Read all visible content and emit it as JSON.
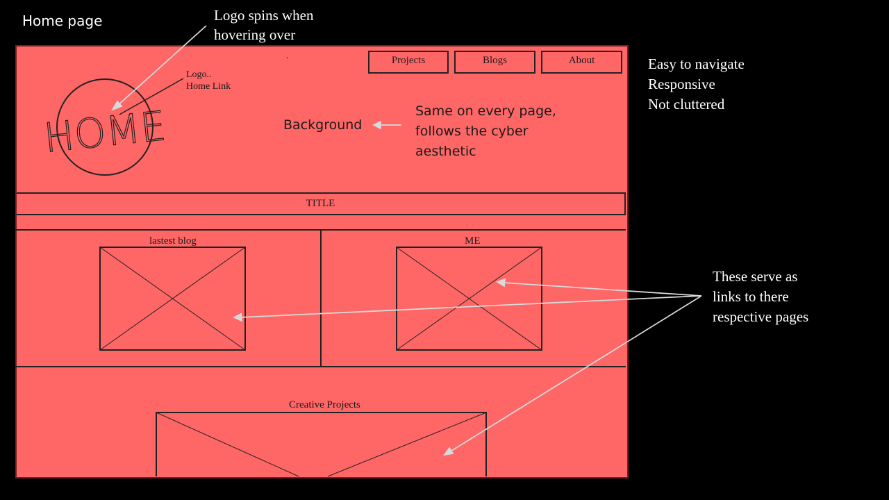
{
  "slide": {
    "title": "Home page",
    "notes": {
      "logo_hover": [
        "Logo spins when",
        "hovering over"
      ],
      "goals": [
        "Easy to navigate",
        "Responsive",
        "Not cluttered"
      ],
      "links": [
        "These serve as",
        "links to there",
        "respective pages"
      ]
    }
  },
  "wireframe": {
    "nav": {
      "projects": "Projects",
      "blogs": "Blogs",
      "about": "About"
    },
    "logo": {
      "drawn_text": "HOME",
      "label": [
        "Logo..",
        "Home Link"
      ]
    },
    "stray_mark": ".",
    "background_label": "Background",
    "background_note": [
      "Same on every page,",
      "follows the cyber",
      "aesthetic"
    ],
    "title_bar": "TITLE",
    "sections": {
      "latest_blog": "lastest blog",
      "me": "ME",
      "creative_projects": "Creative Projects"
    }
  },
  "colors": {
    "page_background": "#000000",
    "wireframe_fill": "#ff6666",
    "wireframe_stroke": "#222222",
    "annotation_text": "#ffffff",
    "arrow": "#d9d9d9"
  }
}
